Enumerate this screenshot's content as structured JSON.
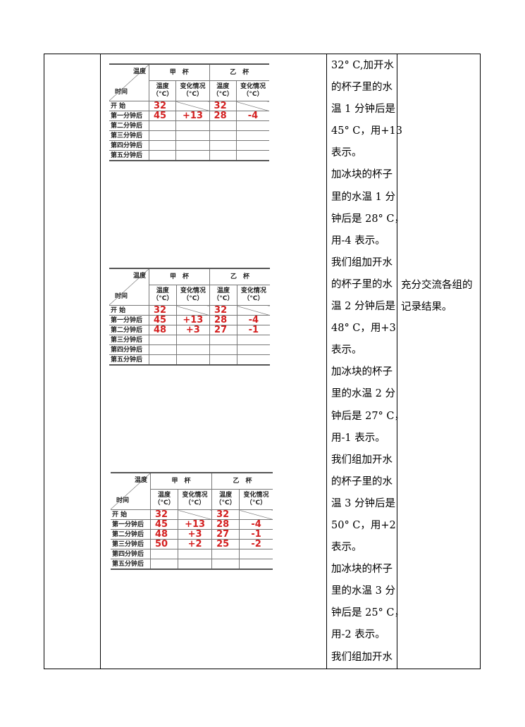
{
  "tables": [
    {
      "corner_top": "温度",
      "corner_bottom": "时间",
      "cup_a": "甲　杯",
      "cup_b": "乙　杯",
      "col_temp": "温度",
      "col_change": "变化情况",
      "unit": "（°C）",
      "rows": [
        [
          "开 始",
          "32",
          "",
          "32",
          ""
        ],
        [
          "第一分钟后",
          "45",
          "+13",
          "28",
          "-4"
        ],
        [
          "第二分钟后",
          "",
          "",
          "",
          ""
        ],
        [
          "第三分钟后",
          "",
          "",
          "",
          ""
        ],
        [
          "第四分钟后",
          "",
          "",
          "",
          ""
        ],
        [
          "第五分钟后",
          "",
          "",
          "",
          ""
        ]
      ]
    },
    {
      "corner_top": "温度",
      "corner_bottom": "时间",
      "cup_a": "甲　杯",
      "cup_b": "乙　杯",
      "col_temp": "温度",
      "col_change": "变化情况",
      "unit": "（°C）",
      "rows": [
        [
          "开 始",
          "32",
          "",
          "32",
          ""
        ],
        [
          "第一分钟后",
          "45",
          "+13",
          "28",
          "-4"
        ],
        [
          "第二分钟后",
          "48",
          "+3",
          "27",
          "-1"
        ],
        [
          "第三分钟后",
          "",
          "",
          "",
          ""
        ],
        [
          "第四分钟后",
          "",
          "",
          "",
          ""
        ],
        [
          "第五分钟后",
          "",
          "",
          "",
          ""
        ]
      ]
    },
    {
      "corner_top": "温度",
      "corner_bottom": "时间",
      "cup_a": "甲　杯",
      "cup_b": "乙　杯",
      "col_temp": "温度",
      "col_change": "变化情况",
      "unit": "（°C）",
      "rows": [
        [
          "开 始",
          "32",
          "",
          "32",
          ""
        ],
        [
          "第一分钟后",
          "45",
          "+13",
          "28",
          "-4"
        ],
        [
          "第二分钟后",
          "48",
          "+3",
          "27",
          "-1"
        ],
        [
          "第三分钟后",
          "50",
          "+2",
          "25",
          "-2"
        ],
        [
          "第四分钟后",
          "",
          "",
          "",
          ""
        ],
        [
          "第五分钟后",
          "",
          "",
          "",
          ""
        ]
      ]
    }
  ],
  "student_text": [
    "32° C,加开水",
    "的杯子里的水",
    "温 1 分钟后是",
    "45° C，用+13",
    "表示。",
    "加冰块的杯子",
    "里的水温 1 分",
    "钟后是 28° C，",
    "用-4 表示。",
    "我们组加开水",
    "的杯子里的水",
    "温 2 分钟后是",
    "48° C，用+3",
    "表示。",
    "加冰块的杯子",
    "里的水温 2 分",
    "钟后是 27° C，",
    "用-1 表示。",
    "我们组加开水",
    "的杯子里的水",
    "温 3 分钟后是",
    "50° C，用+2",
    "表示。",
    "加冰块的杯子",
    "里的水温 3 分",
    "钟后是 25° C，",
    "用-2 表示。",
    "我们组加开水"
  ],
  "teacher_text": [
    "充分交流各组的",
    "记录结果。"
  ],
  "colors": {
    "value_red": "#d42020"
  }
}
